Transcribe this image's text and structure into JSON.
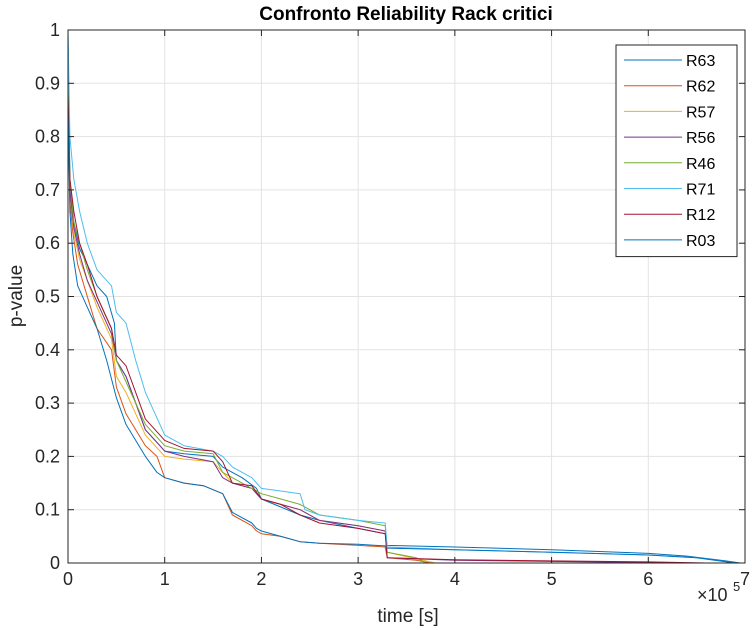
{
  "chart_data": {
    "type": "line",
    "title": "Confronto Reliability Rack critici",
    "xlabel": "time [s]",
    "ylabel": "p-value",
    "x_exponent_base": "×10",
    "x_exponent_power": "5",
    "xlim": [
      0,
      7
    ],
    "ylim": [
      0,
      1
    ],
    "xticks": [
      0,
      1,
      2,
      3,
      4,
      5,
      6,
      7
    ],
    "xtick_labels": [
      "0",
      "1",
      "2",
      "3",
      "4",
      "5",
      "6",
      "7"
    ],
    "yticks": [
      0,
      0.1,
      0.2,
      0.3,
      0.4,
      0.5,
      0.6,
      0.7,
      0.8,
      0.9,
      1
    ],
    "ytick_labels": [
      "0",
      "0.1",
      "0.2",
      "0.3",
      "0.4",
      "0.5",
      "0.6",
      "0.7",
      "0.8",
      "0.9",
      "1"
    ],
    "grid": true,
    "legend_position": "top-right",
    "series": [
      {
        "name": "R63",
        "color": "#0072BD",
        "x": [
          0,
          0.02,
          0.06,
          0.12,
          0.2,
          0.3,
          0.4,
          0.48,
          0.5,
          0.6,
          0.7,
          0.8,
          0.95,
          1.0,
          1.2,
          1.5,
          1.6,
          1.7,
          1.8,
          1.95,
          2.0,
          2.2,
          2.4,
          2.6,
          3.0,
          3.28,
          3.3,
          4.0,
          5.0,
          6.0,
          6.4,
          6.8,
          6.95
        ],
        "y": [
          0.99,
          0.72,
          0.64,
          0.59,
          0.56,
          0.52,
          0.5,
          0.45,
          0.38,
          0.35,
          0.3,
          0.25,
          0.22,
          0.21,
          0.205,
          0.2,
          0.18,
          0.17,
          0.16,
          0.14,
          0.12,
          0.105,
          0.09,
          0.08,
          0.065,
          0.055,
          0.033,
          0.03,
          0.025,
          0.018,
          0.013,
          0.004,
          0.0
        ]
      },
      {
        "name": "R62",
        "color": "#D95319",
        "x": [
          0,
          0.02,
          0.05,
          0.1,
          0.2,
          0.3,
          0.45,
          0.5,
          0.6,
          0.7,
          0.8,
          0.92,
          1.0,
          1.2,
          1.4,
          1.6,
          1.7,
          1.9,
          1.95,
          2.0,
          2.2,
          2.4,
          2.6,
          3.0,
          3.28,
          3.3,
          3.6,
          3.75
        ],
        "y": [
          0.9,
          0.68,
          0.62,
          0.56,
          0.5,
          0.44,
          0.4,
          0.33,
          0.28,
          0.25,
          0.22,
          0.2,
          0.16,
          0.15,
          0.145,
          0.13,
          0.09,
          0.07,
          0.06,
          0.055,
          0.05,
          0.04,
          0.037,
          0.033,
          0.03,
          0.01,
          0.005,
          0.0
        ]
      },
      {
        "name": "R57",
        "color": "#EDB120",
        "x": [
          0,
          0.02,
          0.06,
          0.12,
          0.2,
          0.3,
          0.45,
          0.5,
          0.6,
          0.7,
          0.8,
          0.95,
          1.0,
          1.2,
          1.5,
          1.6,
          1.7,
          1.9,
          2.0,
          2.2,
          2.4,
          2.6,
          3.0,
          3.28,
          3.3,
          3.6,
          3.8
        ],
        "y": [
          0.95,
          0.7,
          0.62,
          0.57,
          0.53,
          0.48,
          0.42,
          0.35,
          0.32,
          0.28,
          0.24,
          0.21,
          0.2,
          0.195,
          0.19,
          0.17,
          0.15,
          0.14,
          0.12,
          0.11,
          0.1,
          0.08,
          0.07,
          0.06,
          0.02,
          0.008,
          0.0
        ]
      },
      {
        "name": "R56",
        "color": "#7E2F8E",
        "x": [
          0,
          0.02,
          0.06,
          0.12,
          0.2,
          0.3,
          0.45,
          0.5,
          0.6,
          0.7,
          0.8,
          0.95,
          1.0,
          1.2,
          1.5,
          1.6,
          1.7,
          1.9,
          2.0,
          2.2,
          2.4,
          2.6,
          3.0,
          3.28,
          3.3,
          4.0,
          5.0,
          6.0,
          6.4
        ],
        "y": [
          0.85,
          0.7,
          0.63,
          0.58,
          0.53,
          0.49,
          0.43,
          0.38,
          0.35,
          0.3,
          0.25,
          0.22,
          0.21,
          0.2,
          0.19,
          0.16,
          0.15,
          0.14,
          0.12,
          0.11,
          0.1,
          0.08,
          0.07,
          0.06,
          0.01,
          0.005,
          0.003,
          0.001,
          0.0
        ]
      },
      {
        "name": "R46",
        "color": "#77AC30",
        "x": [
          0,
          0.02,
          0.06,
          0.12,
          0.2,
          0.3,
          0.45,
          0.5,
          0.6,
          0.7,
          0.8,
          0.95,
          1.0,
          1.2,
          1.5,
          1.6,
          1.7,
          1.9,
          2.0,
          2.2,
          2.4,
          2.6,
          3.0,
          3.28,
          3.3,
          3.6,
          3.7
        ],
        "y": [
          0.92,
          0.72,
          0.64,
          0.6,
          0.55,
          0.5,
          0.44,
          0.38,
          0.34,
          0.3,
          0.26,
          0.23,
          0.22,
          0.21,
          0.205,
          0.17,
          0.16,
          0.14,
          0.13,
          0.12,
          0.11,
          0.09,
          0.08,
          0.07,
          0.02,
          0.01,
          0.0
        ]
      },
      {
        "name": "R71",
        "color": "#4DBEEE",
        "x": [
          0,
          0.02,
          0.06,
          0.12,
          0.2,
          0.3,
          0.45,
          0.5,
          0.6,
          0.7,
          0.8,
          0.95,
          1.0,
          1.2,
          1.5,
          1.6,
          1.7,
          1.9,
          2.0,
          2.2,
          2.4,
          2.45,
          2.6,
          3.0,
          3.28,
          3.3,
          4.0,
          5.0,
          6.0,
          6.5,
          6.9
        ],
        "y": [
          1.0,
          0.8,
          0.72,
          0.66,
          0.6,
          0.55,
          0.52,
          0.47,
          0.45,
          0.38,
          0.32,
          0.26,
          0.24,
          0.22,
          0.21,
          0.2,
          0.18,
          0.16,
          0.14,
          0.135,
          0.13,
          0.1,
          0.09,
          0.08,
          0.075,
          0.03,
          0.025,
          0.02,
          0.015,
          0.01,
          0.0
        ]
      },
      {
        "name": "R12",
        "color": "#A2142F",
        "x": [
          0,
          0.02,
          0.06,
          0.12,
          0.2,
          0.3,
          0.45,
          0.5,
          0.6,
          0.7,
          0.8,
          0.95,
          1.0,
          1.2,
          1.5,
          1.6,
          1.7,
          1.9,
          2.0,
          2.2,
          2.4,
          2.6,
          3.0,
          3.28,
          3.3,
          4.0,
          5.0,
          6.0,
          6.6
        ],
        "y": [
          0.88,
          0.72,
          0.66,
          0.6,
          0.56,
          0.5,
          0.44,
          0.39,
          0.37,
          0.32,
          0.27,
          0.24,
          0.23,
          0.215,
          0.21,
          0.19,
          0.15,
          0.145,
          0.12,
          0.11,
          0.09,
          0.075,
          0.065,
          0.055,
          0.01,
          0.006,
          0.004,
          0.002,
          0.0
        ]
      },
      {
        "name": "R03",
        "color": "#0072BD",
        "x": [
          0,
          0.02,
          0.05,
          0.1,
          0.2,
          0.3,
          0.4,
          0.5,
          0.6,
          0.7,
          0.8,
          0.92,
          1.0,
          1.2,
          1.4,
          1.6,
          1.7,
          1.9,
          1.95,
          2.0,
          2.2,
          2.4,
          2.6,
          3.0,
          3.28,
          3.3,
          4.0,
          5.0,
          6.0,
          6.5,
          6.9
        ],
        "y": [
          0.86,
          0.66,
          0.58,
          0.52,
          0.48,
          0.44,
          0.38,
          0.31,
          0.26,
          0.23,
          0.2,
          0.17,
          0.16,
          0.15,
          0.145,
          0.13,
          0.095,
          0.075,
          0.065,
          0.06,
          0.05,
          0.04,
          0.037,
          0.035,
          0.032,
          0.028,
          0.025,
          0.02,
          0.015,
          0.01,
          0.0
        ]
      }
    ]
  }
}
